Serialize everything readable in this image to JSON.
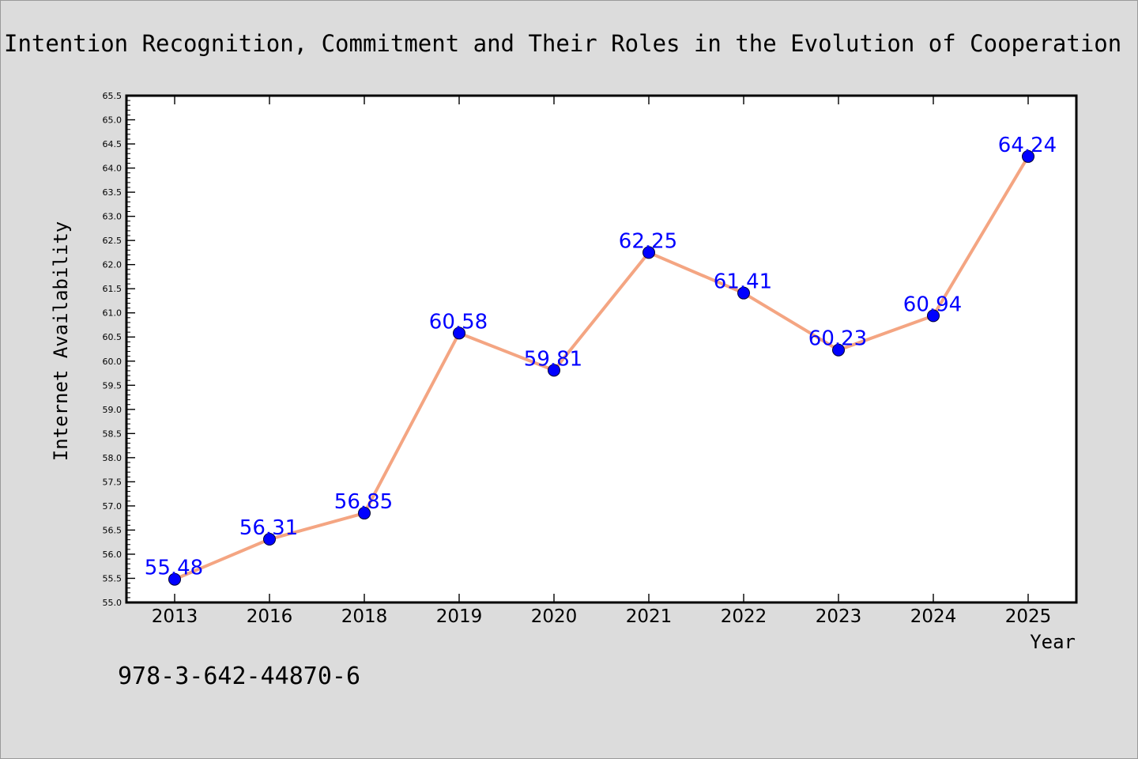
{
  "chart_data": {
    "type": "line",
    "title": "Intention Recognition, Commitment and Their Roles in the Evolution of Cooperation",
    "xlabel": "Year",
    "ylabel": "Internet Availability",
    "categories": [
      "2013",
      "2016",
      "2018",
      "2019",
      "2020",
      "2021",
      "2022",
      "2023",
      "2024",
      "2025"
    ],
    "series": [
      {
        "values": [
          55.48,
          56.31,
          56.85,
          60.58,
          59.81,
          62.25,
          61.41,
          60.23,
          60.94,
          64.24
        ],
        "labels": [
          "55.48",
          "56.31",
          "56.85",
          "60.58",
          "59.81",
          "62.25",
          "61.41",
          "60.23",
          "60.94",
          "64.24"
        ]
      }
    ],
    "ylim": [
      55.0,
      65.5
    ],
    "yticks": [
      "55.0",
      "55.5",
      "56.0",
      "56.5",
      "57.0",
      "57.5",
      "58.0",
      "58.5",
      "59.0",
      "59.5",
      "60.0",
      "60.5",
      "61.0",
      "61.5",
      "62.0",
      "62.5",
      "63.0",
      "63.5",
      "64.0",
      "64.5",
      "65.0",
      "65.5"
    ],
    "grid": false,
    "legend": "none",
    "colors": {
      "line": "#f4a582",
      "marker": "#0000ff",
      "data_label": "#0000ff",
      "plot_background": "#ffffff",
      "page_background": "#dcdcdc"
    }
  },
  "footer": {
    "isbn": "978-3-642-44870-6"
  }
}
